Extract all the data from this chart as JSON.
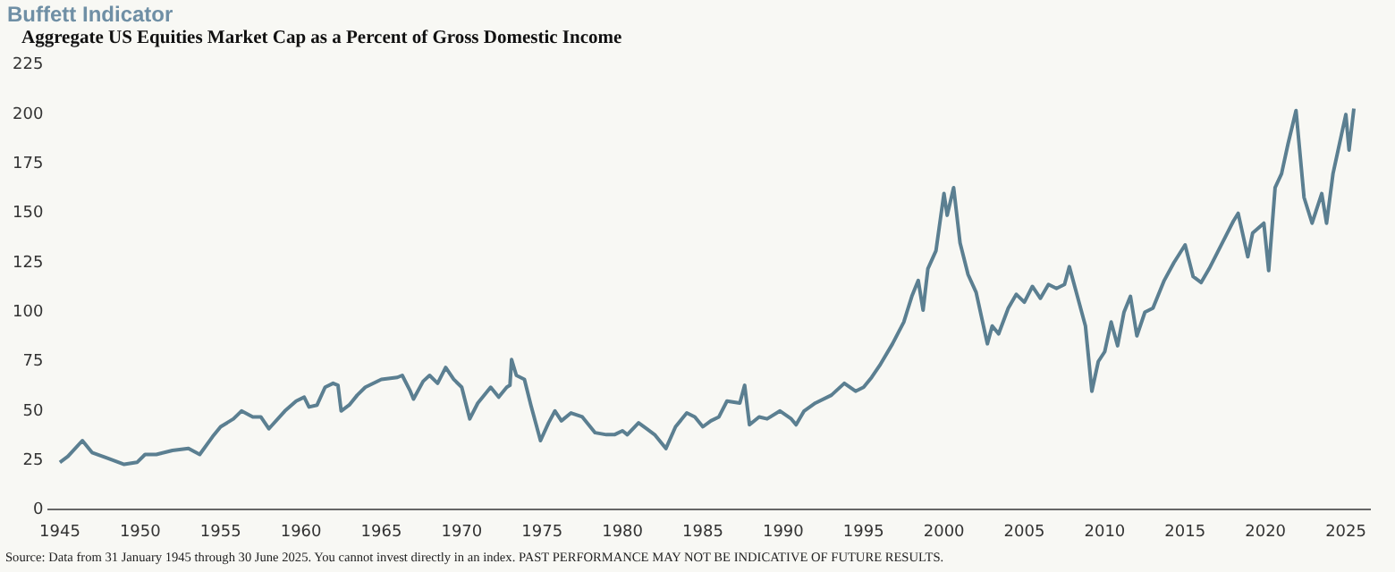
{
  "chart_data": {
    "type": "line",
    "title": "Buffett Indicator",
    "subtitle": "Aggregate US Equities Market Cap as a Percent of Gross Domestic Income",
    "annotations": [
      "Source: Data from 31 January 1945 through 30 June 2025. You cannot invest directly in an index. PAST PERFORMANCE MAY NOT BE INDICATIVE OF FUTURE RESULTS."
    ],
    "x": [
      1945,
      1945.5,
      1946.4,
      1947,
      1948,
      1949,
      1949.8,
      1950.3,
      1951,
      1952,
      1953,
      1953.7,
      1954.5,
      1955,
      1955.8,
      1956.3,
      1957,
      1957.5,
      1958,
      1959,
      1959.7,
      1960.2,
      1960.5,
      1961,
      1961.5,
      1962,
      1962.3,
      1962.5,
      1963,
      1963.5,
      1964,
      1965,
      1966,
      1966.3,
      1966.8,
      1967,
      1967.6,
      1968,
      1968.5,
      1969,
      1969.5,
      1970,
      1970.5,
      1971,
      1971.8,
      1972.3,
      1972.8,
      1973,
      1973.1,
      1973.4,
      1973.9,
      1974.3,
      1974.9,
      1975.4,
      1975.8,
      1976.2,
      1976.8,
      1977.5,
      1978.3,
      1979,
      1979.5,
      1980,
      1980.3,
      1981,
      1981.5,
      1982,
      1982.7,
      1983.3,
      1984,
      1984.5,
      1985,
      1985.5,
      1986,
      1986.5,
      1987.3,
      1987.6,
      1987.9,
      1988.5,
      1989,
      1989.8,
      1990.5,
      1990.8,
      1991.3,
      1992,
      1993,
      1993.8,
      1994.5,
      1995,
      1995.5,
      1996,
      1996.8,
      1997.5,
      1998,
      1998.4,
      1998.7,
      1999,
      1999.5,
      2000,
      2000.2,
      2000.6,
      2001,
      2001.5,
      2002,
      2002.7,
      2003,
      2003.4,
      2004,
      2004.5,
      2005,
      2005.5,
      2006,
      2006.5,
      2007,
      2007.5,
      2007.8,
      2008.3,
      2008.8,
      2009.2,
      2009.6,
      2010,
      2010.4,
      2010.8,
      2011.2,
      2011.6,
      2012,
      2012.5,
      2013,
      2013.7,
      2014.3,
      2015,
      2015.5,
      2016,
      2016.5,
      2017,
      2018,
      2018.3,
      2018.9,
      2019.2,
      2019.9,
      2020.2,
      2020.6,
      2021,
      2021.4,
      2021.9,
      2022.4,
      2022.9,
      2023.5,
      2023.8,
      2024.2,
      2024.6,
      2025,
      2025.2,
      2025.5
    ],
    "series": [
      {
        "color": "#5b7f91",
        "values": [
          24,
          27,
          35,
          29,
          26,
          23,
          24,
          28,
          28,
          30,
          31,
          28,
          37,
          42,
          46,
          50,
          47,
          47,
          41,
          50,
          55,
          57,
          52,
          53,
          62,
          64,
          63,
          50,
          53,
          58,
          62,
          66,
          67,
          68,
          60,
          56,
          65,
          68,
          64,
          72,
          66,
          62,
          46,
          54,
          62,
          57,
          62,
          63,
          76,
          68,
          66,
          53,
          35,
          44,
          50,
          45,
          49,
          47,
          39,
          38,
          38,
          40,
          38,
          44,
          41,
          38,
          31,
          42,
          49,
          47,
          42,
          45,
          47,
          55,
          54,
          63,
          43,
          47,
          46,
          50,
          46,
          43,
          50,
          54,
          58,
          64,
          60,
          62,
          67,
          73,
          84,
          95,
          108,
          116,
          101,
          122,
          131,
          160,
          149,
          163,
          135,
          119,
          110,
          84,
          93,
          89,
          102,
          109,
          105,
          113,
          107,
          114,
          112,
          114,
          123,
          108,
          93,
          60,
          75,
          80,
          95,
          83,
          100,
          108,
          88,
          100,
          102,
          116,
          125,
          134,
          118,
          115,
          122,
          130,
          146,
          150,
          128,
          140,
          145,
          121,
          163,
          170,
          185,
          202,
          158,
          145,
          160,
          145,
          170,
          185,
          200,
          182,
          203
        ]
      }
    ],
    "xlim": [
      1944.3,
      2026.5
    ],
    "xticks": [
      1945,
      1950,
      1955,
      1960,
      1965,
      1970,
      1975,
      1980,
      1985,
      1990,
      1995,
      2000,
      2005,
      2010,
      2015,
      2020,
      2025
    ],
    "ylim": [
      0,
      225
    ],
    "yticks": [
      0,
      25,
      50,
      75,
      100,
      125,
      150,
      175,
      200,
      225
    ],
    "grid": false,
    "legend": false,
    "marker": "none",
    "line_style": "solid"
  }
}
